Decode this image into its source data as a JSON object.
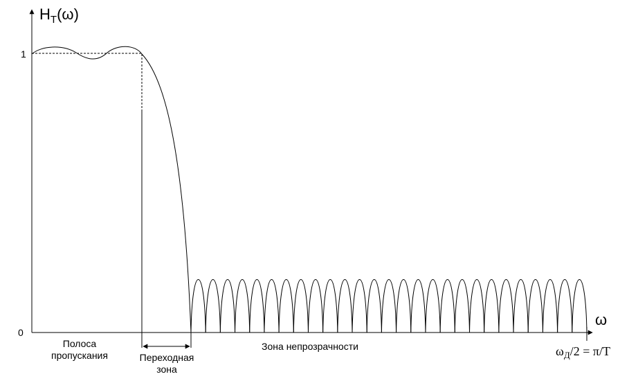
{
  "y_axis_label": {
    "main": "H",
    "subscript": "T",
    "argument": "(ω)"
  },
  "tick_labels": {
    "one": "1",
    "zero": "0"
  },
  "x_axis_label": "ω",
  "zones": {
    "passband": [
      "Полоса",
      "пропускания"
    ],
    "transition": [
      "Переходная",
      "зона"
    ],
    "stopband": "Зона непрозрачности"
  },
  "nyquist_label": {
    "omega": "ω",
    "subscript": "Д",
    "rest": "/2 = π/T"
  }
}
